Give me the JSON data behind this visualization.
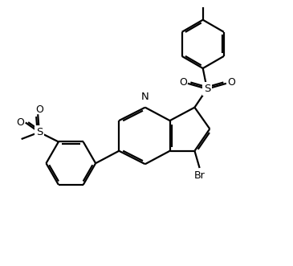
{
  "bg_color": "#ffffff",
  "line_color": "#000000",
  "line_width": 1.6,
  "figsize": [
    3.65,
    3.31
  ],
  "dpi": 100,
  "xlim": [
    0,
    10
  ],
  "ylim": [
    0,
    9.5
  ]
}
